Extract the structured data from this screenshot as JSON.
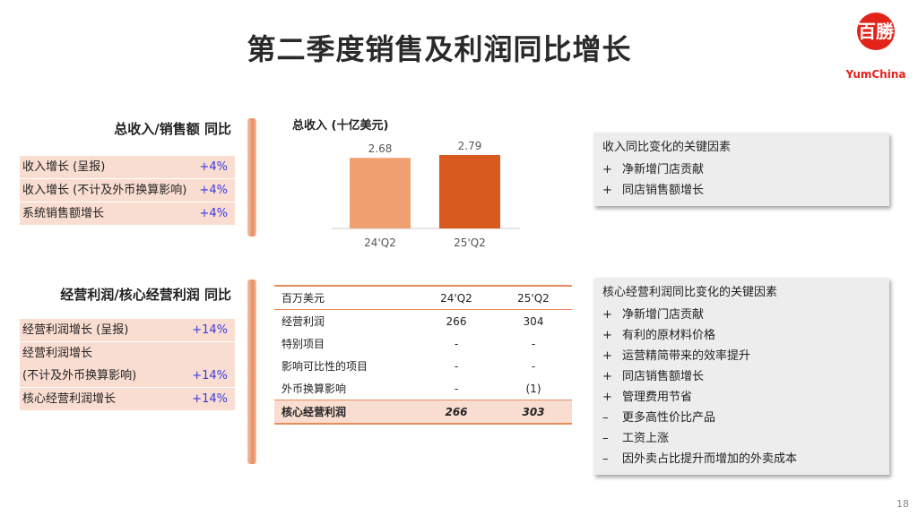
{
  "title": "第二季度销售及利润同比增长",
  "logo": {
    "mark": "百勝",
    "brand": "YumChina"
  },
  "revenue_section": {
    "heading": "总收入/销售额 同比",
    "rows": [
      {
        "label": "收入增长 (呈报)",
        "value": "+4%"
      },
      {
        "label": "收入增长 (不计及外币换算影响)",
        "value": "+4%"
      },
      {
        "label": "系统销售额增长",
        "value": "+4%"
      }
    ]
  },
  "profit_section": {
    "heading": "经营利润/核心经营利润 同比",
    "rows": [
      {
        "label": "经营利润增长 (呈报)",
        "value": "+14%"
      },
      {
        "label": "经营利润增长",
        "value": ""
      },
      {
        "label": "(不计及外币换算影响)",
        "value": "+14%"
      },
      {
        "label": "核心经营利润增长",
        "value": "+14%"
      }
    ]
  },
  "chart_data": {
    "type": "bar",
    "title": "总收入 (十亿美元)",
    "categories": [
      "24'Q2",
      "25'Q2"
    ],
    "values": [
      2.68,
      2.79
    ],
    "value_labels": [
      "2.68",
      "2.79"
    ],
    "colors": [
      "#f0a070",
      "#d95a1f"
    ]
  },
  "revenue_factors": {
    "heading": "收入同比变化的关键因素",
    "items": [
      {
        "sym": "+",
        "text": "净新增门店贡献"
      },
      {
        "sym": "+",
        "text": "同店销售额增长"
      }
    ]
  },
  "profit_table": {
    "header": [
      "百万美元",
      "24'Q2",
      "25'Q2"
    ],
    "rows": [
      [
        "经营利润",
        "266",
        "304"
      ],
      [
        "特别项目",
        "-",
        "-"
      ],
      [
        "影响可比性的项目",
        "-",
        "-"
      ],
      [
        "外币换算影响",
        "-",
        "(1)"
      ]
    ],
    "total": [
      "核心经营利润",
      "266",
      "303"
    ]
  },
  "profit_factors": {
    "heading": "核心经营利润同比变化的关键因素",
    "items": [
      {
        "sym": "+",
        "text": "净新增门店贡献"
      },
      {
        "sym": "+",
        "text": "有利的原材料价格"
      },
      {
        "sym": "+",
        "text": "运营精简带来的效率提升"
      },
      {
        "sym": "+",
        "text": "同店销售额增长"
      },
      {
        "sym": "+",
        "text": "管理费用节省"
      },
      {
        "sym": "–",
        "text": "更多高性价比产品"
      },
      {
        "sym": "–",
        "text": "工资上涨"
      },
      {
        "sym": "–",
        "text": "因外卖占比提升而增加的外卖成本"
      }
    ]
  },
  "page_number": "18"
}
